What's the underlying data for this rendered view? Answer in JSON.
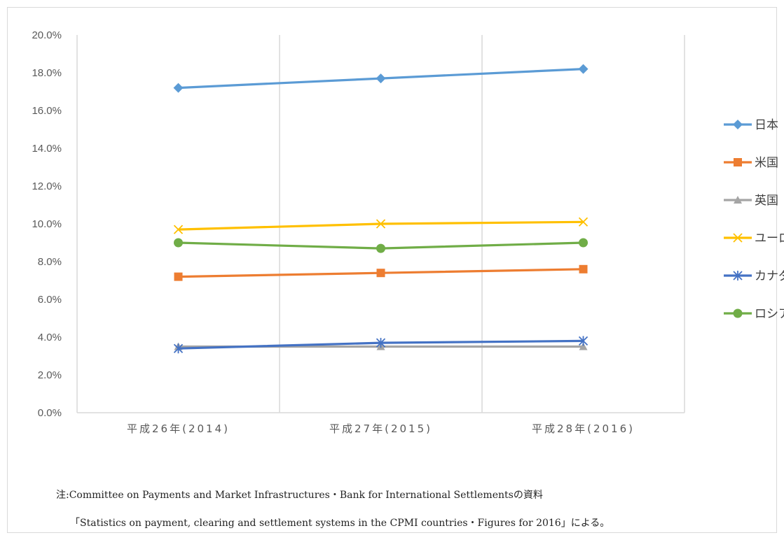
{
  "chart_data": {
    "type": "line",
    "categories": [
      "平成26年(2014)",
      "平成27年(2015)",
      "平成28年(2016)"
    ],
    "ylim": [
      0,
      20
    ],
    "y_ticks": [
      "0.0%",
      "2.0%",
      "4.0%",
      "6.0%",
      "8.0%",
      "10.0%",
      "12.0%",
      "14.0%",
      "16.0%",
      "18.0%",
      "20.0%"
    ],
    "grid": "vertical",
    "legend_position": "right",
    "series": [
      {
        "name": "日本",
        "values": [
          17.2,
          17.7,
          18.2
        ],
        "color": "#5b9bd5",
        "marker": "diamond"
      },
      {
        "name": "米国",
        "values": [
          7.2,
          7.4,
          7.6
        ],
        "color": "#ed7d31",
        "marker": "square"
      },
      {
        "name": "英国",
        "values": [
          3.5,
          3.5,
          3.5
        ],
        "color": "#a5a5a5",
        "marker": "triangle"
      },
      {
        "name": "ユーロ",
        "values": [
          9.7,
          10.0,
          10.1
        ],
        "color": "#ffc000",
        "marker": "x"
      },
      {
        "name": "カナダ",
        "values": [
          3.4,
          3.7,
          3.8
        ],
        "color": "#4472c4",
        "marker": "star"
      },
      {
        "name": "ロシア",
        "values": [
          9.0,
          8.7,
          9.0
        ],
        "color": "#70ad47",
        "marker": "circle"
      }
    ]
  },
  "note": {
    "line1": "注:Committee on Payments and Market Infrastructures・Bank for International Settlementsの資料",
    "line2": "「Statistics on payment, clearing and settlement systems in the CPMI countries・Figures for 2016」による。"
  }
}
